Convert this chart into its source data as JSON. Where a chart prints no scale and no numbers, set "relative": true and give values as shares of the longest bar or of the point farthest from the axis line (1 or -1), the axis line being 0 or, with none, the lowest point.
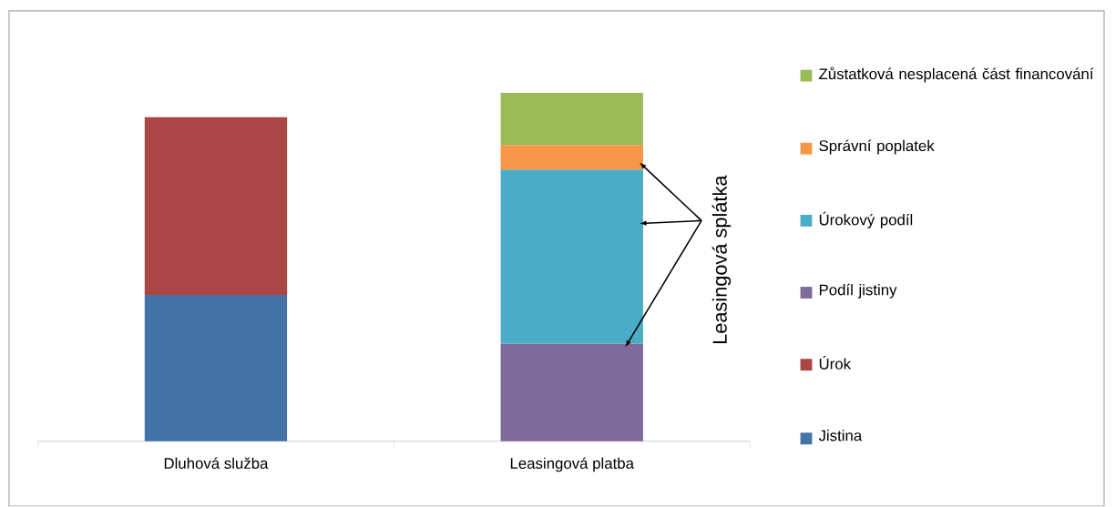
{
  "chart_data": {
    "type": "bar",
    "stacked": true,
    "relative": true,
    "legend": "right",
    "categories": [
      "Dluhová služba",
      "Leasingová platba"
    ],
    "series": [
      {
        "name": "Jistina",
        "color": "#4572a7",
        "values": [
          0.42,
          null
        ]
      },
      {
        "name": "Úrok",
        "color": "#aa4643",
        "values": [
          0.51,
          null
        ]
      },
      {
        "name": "Podíl jistiny",
        "color": "#80699b",
        "values": [
          null,
          0.28
        ]
      },
      {
        "name": "Úrokový podíl",
        "color": "#4bacc6",
        "values": [
          null,
          0.5
        ]
      },
      {
        "name": "Správní poplatek",
        "color": "#f79646",
        "values": [
          null,
          0.07
        ]
      },
      {
        "name": "Zůstatková nesplacená část financování",
        "color": "#9bbb59",
        "values": [
          null,
          0.15
        ]
      }
    ],
    "annotations": [
      "Leasingová splátka"
    ]
  }
}
